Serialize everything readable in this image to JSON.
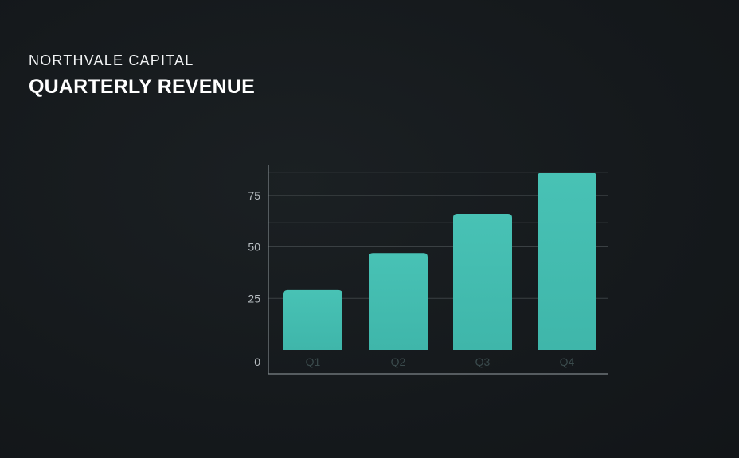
{
  "header": {
    "brand": "NORTHVALE CAPITAL",
    "title": "QUARTERLY REVENUE"
  },
  "colors": {
    "background": "#161a1d",
    "bar": "#48c2b5",
    "grid": "#3a4043",
    "axis": "#7d8589",
    "text": "#ffffff"
  },
  "chart_data": {
    "type": "bar",
    "categories": [
      "Q1",
      "Q2",
      "Q3",
      "Q4"
    ],
    "values": [
      29,
      47,
      66,
      86
    ],
    "yticks": [
      0,
      25,
      50,
      75
    ],
    "ylim": [
      0,
      90
    ],
    "grid": true,
    "title": "",
    "xlabel": "",
    "ylabel": ""
  }
}
